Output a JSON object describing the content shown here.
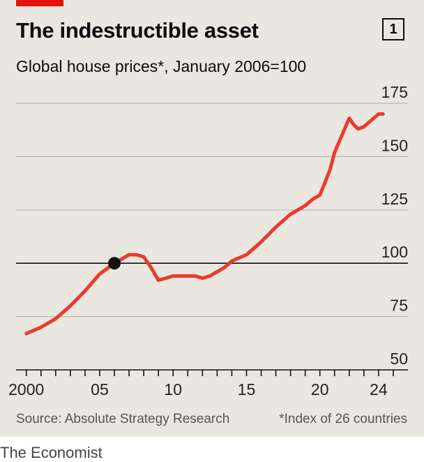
{
  "header": {
    "title": "The indestructible asset",
    "chart_number": "1",
    "subtitle": "Global house prices*, January 2006=100"
  },
  "footer": {
    "source": "Source: Absolute Strategy Research",
    "footnote": "*Index of 26 countries",
    "brand": "The Economist"
  },
  "colors": {
    "line": "#ea3b2c",
    "accent": "#e3120b",
    "marker": "#111111",
    "grid": "#b9b8b1"
  },
  "chart_data": {
    "type": "line",
    "title": "The indestructible asset",
    "subtitle": "Global house prices*, January 2006=100",
    "ylim": [
      50,
      175
    ],
    "yticks": [
      175,
      150,
      125,
      100,
      75,
      50
    ],
    "xlim": [
      1999.3,
      2026.0
    ],
    "xtick_labels": [
      {
        "x": 2000,
        "label": "2000"
      },
      {
        "x": 2005,
        "label": "05"
      },
      {
        "x": 2010,
        "label": "10"
      },
      {
        "x": 2015,
        "label": "15"
      },
      {
        "x": 2020,
        "label": "20"
      },
      {
        "x": 2024,
        "label": "24"
      }
    ],
    "reference_line": 100,
    "highlight_point": {
      "x": 2006.0,
      "y": 100
    },
    "grid": true,
    "series": [
      {
        "x": [
          2000.0,
          2001.0,
          2002.0,
          2003.0,
          2004.0,
          2005.0,
          2006.0,
          2006.5,
          2007.0,
          2007.5,
          2008.0,
          2008.5,
          2009.0,
          2009.5,
          2010.0,
          2010.5,
          2011.0,
          2011.5,
          2012.0,
          2012.5,
          2013.0,
          2013.5,
          2014.0,
          2015.0,
          2016.0,
          2017.0,
          2018.0,
          2019.0,
          2019.5,
          2020.0,
          2020.3,
          2020.7,
          2021.0,
          2021.5,
          2022.0,
          2022.3,
          2022.6,
          2023.0,
          2023.5,
          2024.0,
          2024.3
        ],
        "y": [
          67,
          70,
          74,
          80,
          87,
          95,
          100,
          102,
          104,
          104,
          103,
          98,
          92,
          93,
          94,
          94,
          94,
          94,
          93,
          94,
          96,
          98,
          101,
          104,
          110,
          117,
          123,
          127,
          130,
          132,
          137,
          144,
          152,
          160,
          168,
          165,
          163,
          164,
          167,
          170,
          170
        ]
      }
    ]
  }
}
